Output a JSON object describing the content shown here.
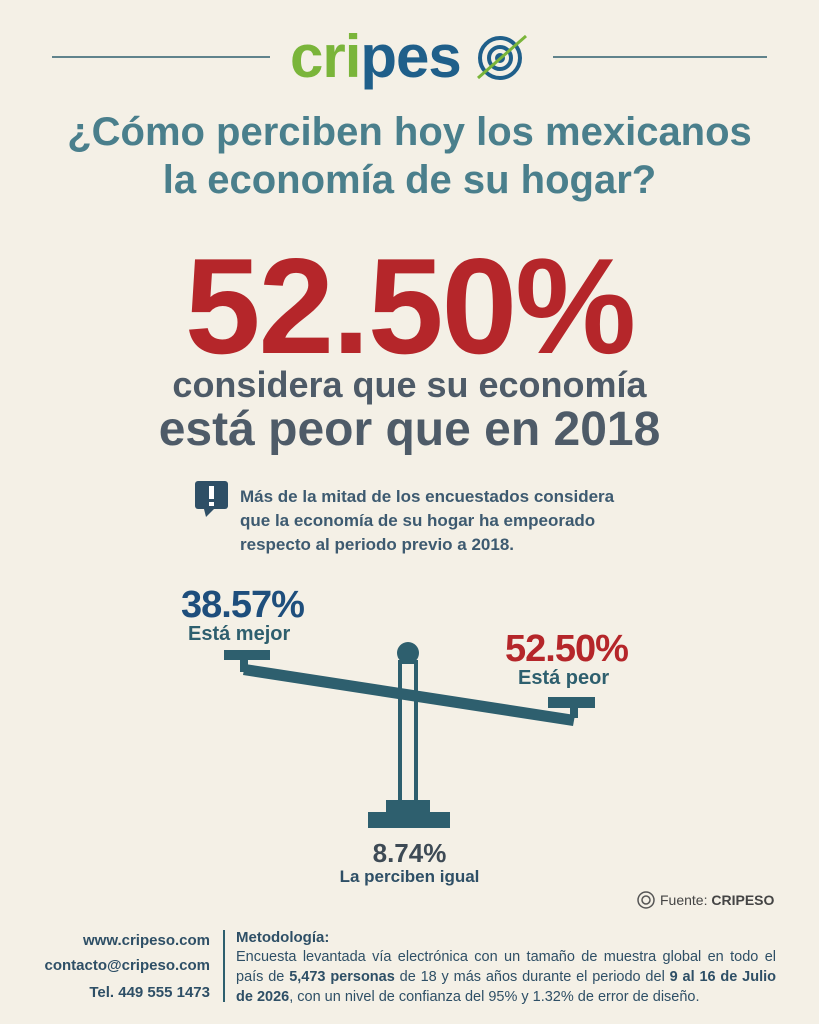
{
  "logo": {
    "parts": [
      "cri",
      "pes"
    ]
  },
  "title": [
    "¿Cómo perciben hoy los mexicanos",
    "la economía de su hogar?"
  ],
  "headline": {
    "value": "52.50%",
    "line1": "considera que su economía",
    "line2": "está peor que en 2018"
  },
  "note": [
    "Más de la mitad de los encuestados considera",
    "que la economía de su hogar ha empeorado",
    "respecto al periodo previo a 2018."
  ],
  "results": [
    {
      "value": "38.57%",
      "label": "Está mejor"
    },
    {
      "value": "52.50%",
      "label": "Está peor"
    },
    {
      "value": "8.74%",
      "label": "La perciben igual"
    }
  ],
  "source": {
    "label": "Fuente:",
    "name": "CRIPESO"
  },
  "contact": [
    "www.cripeso.com",
    "contacto@cripeso.com",
    "Tel. 449 555 1473"
  ],
  "methodology": {
    "title": "Metodología:",
    "segments": [
      "Encuesta levantada vía electrónica con un tamaño de muestra global en todo el país de ",
      "5,473 personas",
      " de 18 y más años durante el periodo del ",
      "9 al 16 de Julio de 2026",
      ", con un nivel de confianza del 95% y 1.32% de error de diseño."
    ]
  }
}
